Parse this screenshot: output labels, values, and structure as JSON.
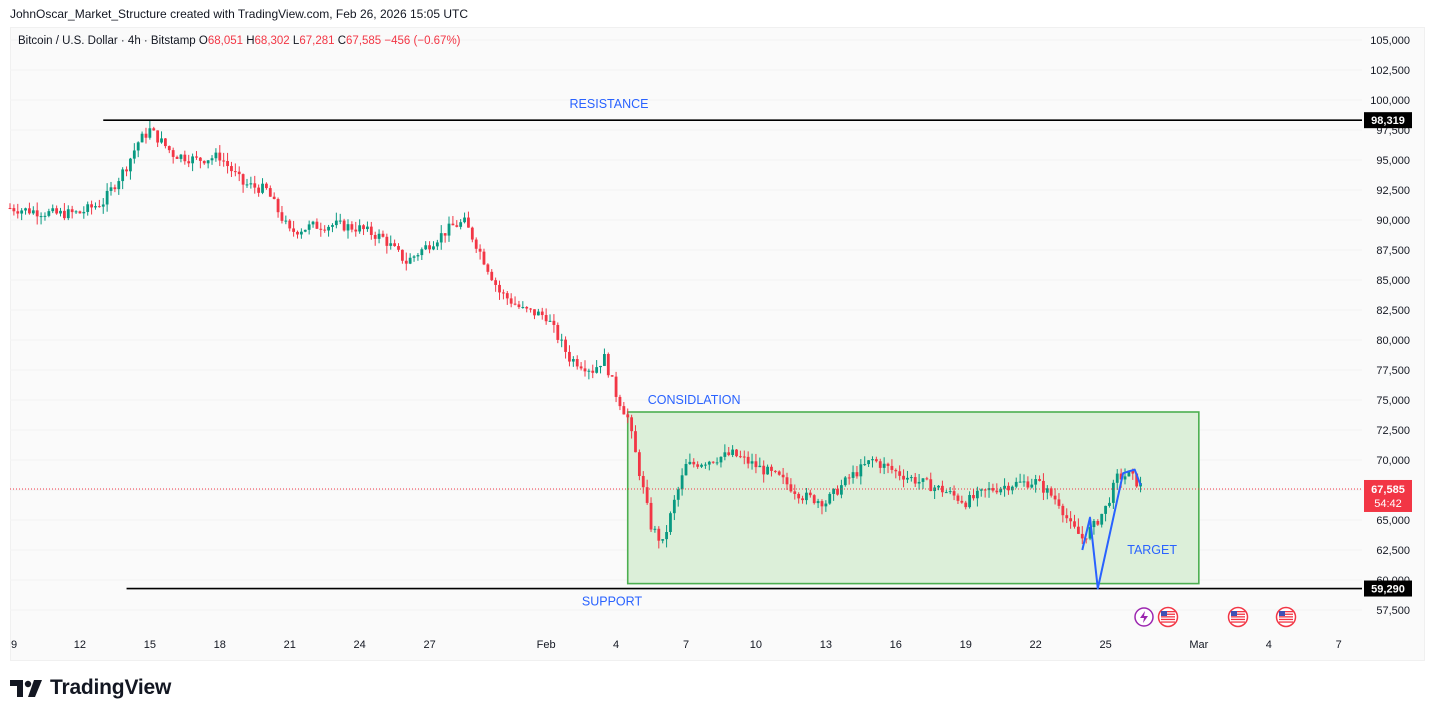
{
  "header": {
    "caption": "JohnOscar_Market_Structure created with TradingView.com, Feb 26, 2026 15:05 UTC"
  },
  "legend": {
    "symbol": "Bitcoin / U.S. Dollar · 4h · Bitstamp",
    "o_label": "O",
    "o_value": "68,051",
    "h_label": "H",
    "h_value": "68,302",
    "l_label": "L",
    "l_value": "67,281",
    "c_label": "C",
    "c_value": "67,585",
    "change": "−456 (−0.67%)"
  },
  "brand": {
    "name": "TradingView"
  },
  "chart_data": {
    "type": "candlestick",
    "timeframe": "4h",
    "y_range": [
      56000,
      106000
    ],
    "x_range_days": [
      "2026-01-09",
      "2026-03-08"
    ],
    "y_ticks": [
      105000,
      102500,
      100000,
      97500,
      95000,
      92500,
      90000,
      87500,
      85000,
      82500,
      80000,
      77500,
      75000,
      72500,
      70000,
      67500,
      65000,
      62500,
      60000,
      57500
    ],
    "y_tick_labels": [
      "105,000",
      "102,500",
      "100,000",
      "97,500",
      "95,000",
      "92,500",
      "90,000",
      "87,500",
      "85,000",
      "82,500",
      "80,000",
      "77,500",
      "75,000",
      "72,500",
      "70,000",
      "67,500",
      "65,000",
      "62,500",
      "60,000",
      "57,500"
    ],
    "x_ticks": [
      {
        "label": "9",
        "date": "2026-01-09"
      },
      {
        "label": "12",
        "date": "2026-01-12"
      },
      {
        "label": "15",
        "date": "2026-01-15"
      },
      {
        "label": "18",
        "date": "2026-01-18"
      },
      {
        "label": "21",
        "date": "2026-01-21"
      },
      {
        "label": "24",
        "date": "2026-01-24"
      },
      {
        "label": "27",
        "date": "2026-01-27"
      },
      {
        "label": "Feb",
        "date": "2026-02-01"
      },
      {
        "label": "4",
        "date": "2026-02-04"
      },
      {
        "label": "7",
        "date": "2026-02-07"
      },
      {
        "label": "10",
        "date": "2026-02-10"
      },
      {
        "label": "13",
        "date": "2026-02-13"
      },
      {
        "label": "16",
        "date": "2026-02-16"
      },
      {
        "label": "19",
        "date": "2026-02-19"
      },
      {
        "label": "22",
        "date": "2026-02-22"
      },
      {
        "label": "25",
        "date": "2026-02-25"
      },
      {
        "label": "Mar",
        "date": "2026-03-01"
      },
      {
        "label": "4",
        "date": "2026-03-04"
      },
      {
        "label": "7",
        "date": "2026-03-07"
      }
    ],
    "price_path": [
      [
        "2026-01-09",
        91000
      ],
      [
        "2026-01-11",
        90500
      ],
      [
        "2026-01-12",
        90600
      ],
      [
        "2026-01-13",
        91500
      ],
      [
        "2026-01-14",
        94500
      ],
      [
        "2026-01-14T12",
        96500
      ],
      [
        "2026-01-15",
        97500
      ],
      [
        "2026-01-16",
        95500
      ],
      [
        "2026-01-17",
        95000
      ],
      [
        "2026-01-18",
        95300
      ],
      [
        "2026-01-19",
        93000
      ],
      [
        "2026-01-20",
        92500
      ],
      [
        "2026-01-21",
        89000
      ],
      [
        "2026-01-22",
        89500
      ],
      [
        "2026-01-23",
        89600
      ],
      [
        "2026-01-24",
        89300
      ],
      [
        "2026-01-25",
        88500
      ],
      [
        "2026-01-26",
        86500
      ],
      [
        "2026-01-27",
        88000
      ],
      [
        "2026-01-28",
        89500
      ],
      [
        "2026-01-28T12",
        89800
      ],
      [
        "2026-01-29",
        88000
      ],
      [
        "2026-01-30",
        84000
      ],
      [
        "2026-01-31",
        82500
      ],
      [
        "2026-02-01",
        82000
      ],
      [
        "2026-02-02",
        78500
      ],
      [
        "2026-02-03",
        77500
      ],
      [
        "2026-02-03T12",
        78500
      ],
      [
        "2026-02-04",
        75500
      ],
      [
        "2026-02-04T12",
        73500
      ],
      [
        "2026-02-05",
        69000
      ],
      [
        "2026-02-05T12",
        64500
      ],
      [
        "2026-02-06",
        63000
      ],
      [
        "2026-02-06T12",
        66500
      ],
      [
        "2026-02-07",
        69500
      ],
      [
        "2026-02-08",
        70000
      ],
      [
        "2026-02-09",
        70500
      ],
      [
        "2026-02-10",
        69500
      ],
      [
        "2026-02-11",
        68500
      ],
      [
        "2026-02-12",
        67000
      ],
      [
        "2026-02-13",
        66500
      ],
      [
        "2026-02-14",
        68500
      ],
      [
        "2026-02-15",
        70000
      ],
      [
        "2026-02-16",
        69000
      ],
      [
        "2026-02-17",
        68200
      ],
      [
        "2026-02-18",
        67500
      ],
      [
        "2026-02-19",
        66500
      ],
      [
        "2026-02-20",
        67500
      ],
      [
        "2026-02-21",
        68000
      ],
      [
        "2026-02-22",
        68200
      ],
      [
        "2026-02-23",
        66500
      ],
      [
        "2026-02-23T12",
        64500
      ],
      [
        "2026-02-24",
        63500
      ],
      [
        "2026-02-24T12",
        64500
      ],
      [
        "2026-02-25",
        66000
      ],
      [
        "2026-02-25T12",
        68500
      ],
      [
        "2026-02-26",
        68800
      ],
      [
        "2026-02-26T15",
        67585
      ]
    ],
    "last_price": {
      "label": "67,585",
      "countdown": "54:42",
      "value": 67585,
      "color": "#f23645"
    },
    "levels": [
      {
        "name": "RESISTANCE",
        "value": 98319,
        "label": "98,319",
        "from": "2026-01-13"
      },
      {
        "name": "SUPPORT",
        "value": 59290,
        "label": "59,290",
        "from": "2026-01-14"
      }
    ],
    "consolidation_box": {
      "label": "CONSIDLATION",
      "from": "2026-02-04T12",
      "to": "2026-03-01",
      "top": 74000,
      "bottom": 59700,
      "fill": "#dcefd9",
      "stroke": "#4caf50"
    },
    "target_path": {
      "label": "TARGET",
      "points": [
        [
          "2026-02-24",
          62500
        ],
        [
          "2026-02-24T08",
          65200
        ],
        [
          "2026-02-24T16",
          59290
        ],
        [
          "2026-02-25T18",
          68900
        ],
        [
          "2026-02-26T06",
          69200
        ],
        [
          "2026-02-26T12",
          67900
        ]
      ],
      "color": "#2962ff"
    },
    "colors": {
      "up": "#089981",
      "down": "#f23645",
      "level_line": "#000000",
      "annotation": "#2962ff"
    },
    "event_icons": [
      "lightning-event-icon",
      "us-flag-icon",
      "us-flag-icon",
      "us-flag-icon"
    ]
  }
}
